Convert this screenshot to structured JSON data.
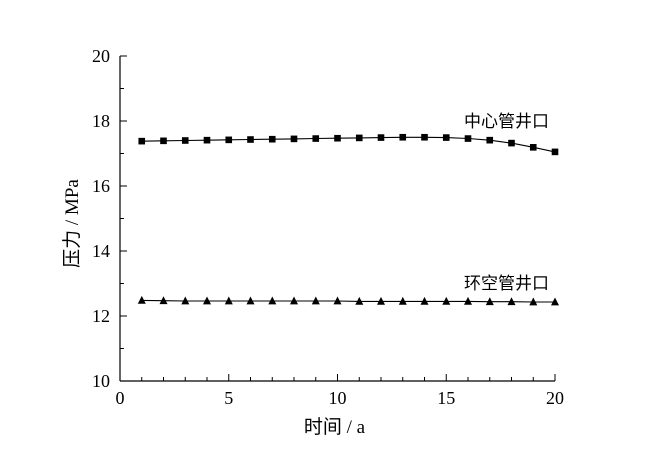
{
  "chart_data": {
    "type": "line",
    "xlabel": "时间 / a",
    "ylabel": "压力 / MPa",
    "xlim": [
      0,
      20
    ],
    "ylim": [
      10,
      20
    ],
    "xticks": [
      "0",
      "5",
      "10",
      "15",
      "20"
    ],
    "yticks": [
      "10",
      "12",
      "14",
      "16",
      "18",
      "20"
    ],
    "grid": false,
    "legend": "inline labels",
    "series": [
      {
        "name": "中心管井口",
        "marker": "square",
        "x": [
          1,
          2,
          3,
          4,
          5,
          6,
          7,
          8,
          9,
          10,
          11,
          12,
          13,
          14,
          15,
          16,
          17,
          18,
          19,
          20
        ],
        "values": [
          17.38,
          17.39,
          17.4,
          17.41,
          17.42,
          17.43,
          17.44,
          17.45,
          17.46,
          17.47,
          17.48,
          17.49,
          17.5,
          17.5,
          17.49,
          17.46,
          17.41,
          17.32,
          17.19,
          17.05
        ]
      },
      {
        "name": "环空管井口",
        "marker": "triangle",
        "x": [
          1,
          2,
          3,
          4,
          5,
          6,
          7,
          8,
          9,
          10,
          11,
          12,
          13,
          14,
          15,
          16,
          17,
          18,
          19,
          20
        ],
        "values": [
          12.48,
          12.47,
          12.46,
          12.46,
          12.46,
          12.46,
          12.46,
          12.46,
          12.46,
          12.46,
          12.45,
          12.45,
          12.45,
          12.45,
          12.45,
          12.45,
          12.44,
          12.44,
          12.43,
          12.43
        ]
      }
    ]
  }
}
